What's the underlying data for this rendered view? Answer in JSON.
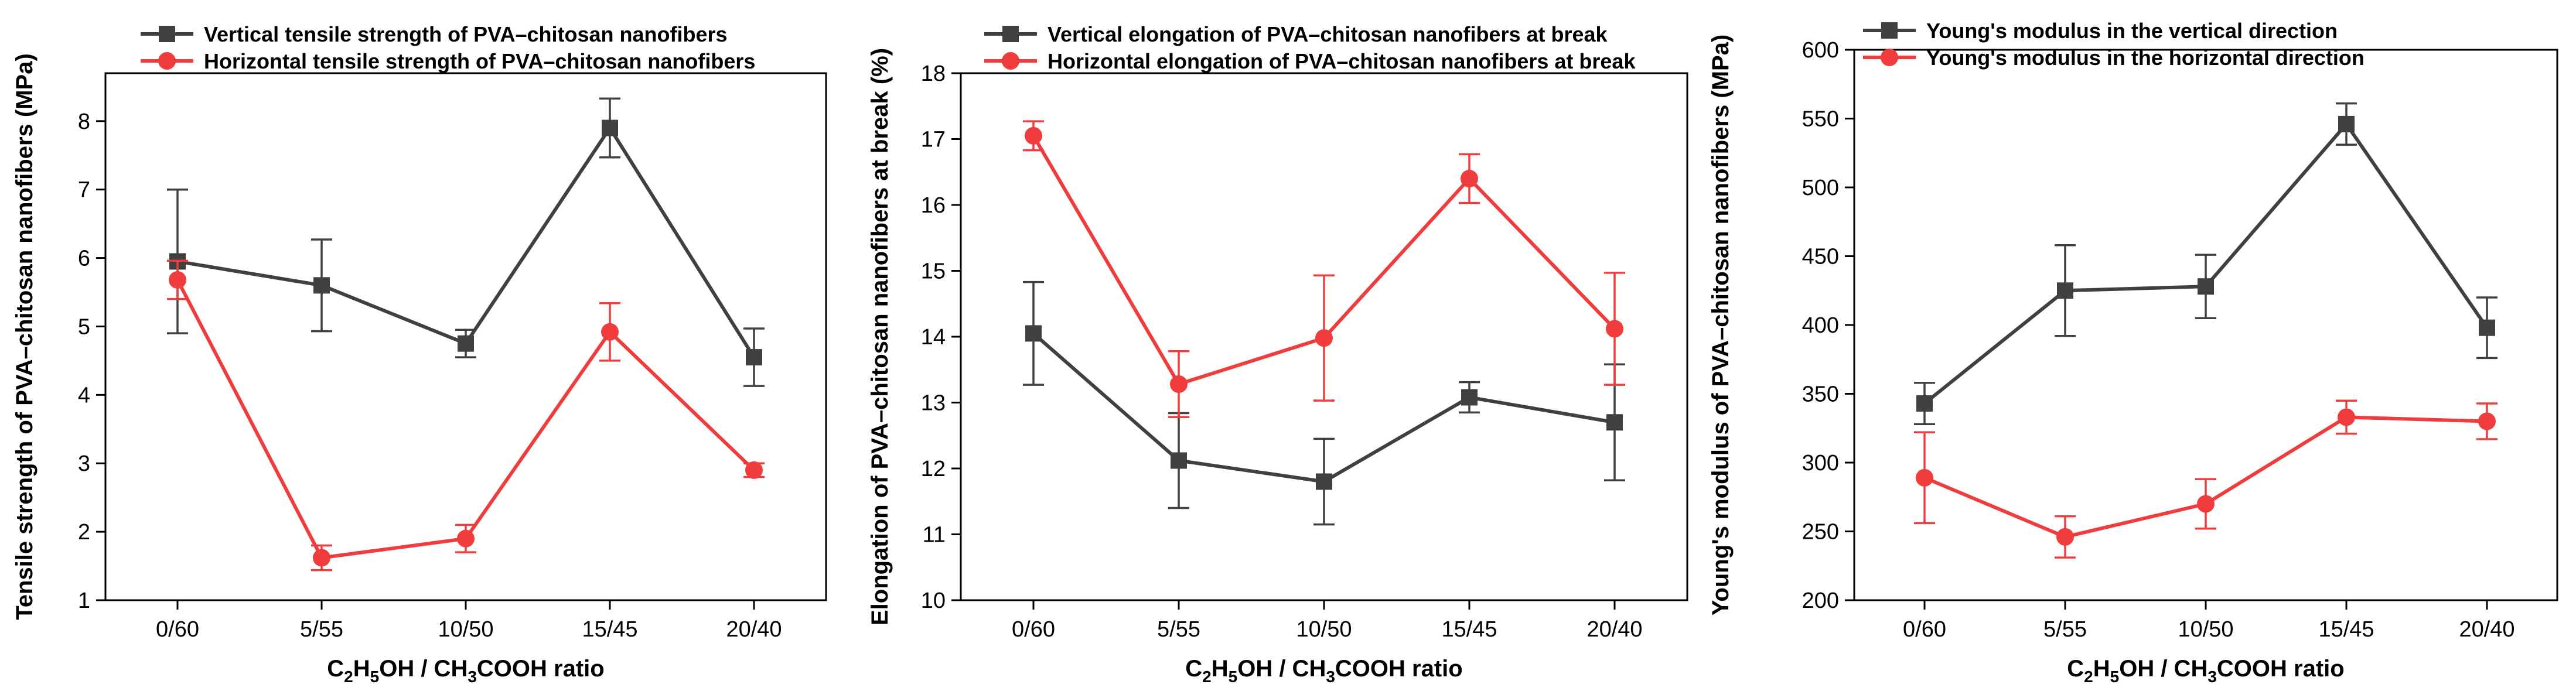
{
  "chart_data": [
    {
      "type": "line",
      "categories": [
        "0/60",
        "5/55",
        "10/50",
        "15/45",
        "20/40"
      ],
      "xlabel_parts": [
        "C",
        "2",
        "H",
        "5",
        "OH / CH",
        "3",
        "COOH ratio"
      ],
      "ylabel": "Tensile strength of  PVA–chitosan nanofibers (MPa)",
      "ylim": [
        1,
        8.7
      ],
      "yticks": [
        1,
        2,
        3,
        4,
        5,
        6,
        7,
        8
      ],
      "legend_position": "top-left",
      "series": [
        {
          "name": "Vertical tensile strength of  PVA–chitosan nanofibers",
          "color": "#404040",
          "marker": "square",
          "values": [
            5.95,
            5.6,
            4.75,
            7.9,
            4.55
          ],
          "errors": [
            1.05,
            0.67,
            0.2,
            0.43,
            0.42
          ]
        },
        {
          "name": "Horizontal tensile strength of  PVA–chitosan nanofibers",
          "color": "#f03c3c",
          "marker": "circle",
          "values": [
            5.68,
            1.62,
            1.9,
            4.92,
            2.9
          ],
          "errors": [
            0.28,
            0.18,
            0.2,
            0.42,
            0.1
          ]
        }
      ]
    },
    {
      "type": "line",
      "categories": [
        "0/60",
        "5/55",
        "10/50",
        "15/45",
        "20/40"
      ],
      "xlabel_parts": [
        "C",
        "2",
        "H",
        "5",
        "OH / CH",
        "3",
        "COOH ratio"
      ],
      "ylabel": "Elongation of PVA–chitosan nanofibers at break (%)",
      "ylim": [
        10,
        18
      ],
      "yticks": [
        10,
        11,
        12,
        13,
        14,
        15,
        16,
        17,
        18
      ],
      "legend_position": "top-left",
      "series": [
        {
          "name": "Vertical elongation of PVA–chitosan nanofibers at break",
          "color": "#404040",
          "marker": "square",
          "values": [
            14.05,
            12.12,
            11.8,
            13.08,
            12.7
          ],
          "errors": [
            0.78,
            0.72,
            0.65,
            0.23,
            0.88
          ]
        },
        {
          "name": "Horizontal elongation of PVA–chitosan nanofibers at break",
          "color": "#f03c3c",
          "marker": "circle",
          "values": [
            17.05,
            13.28,
            13.98,
            16.4,
            14.12
          ],
          "errors": [
            0.22,
            0.5,
            0.95,
            0.37,
            0.85
          ]
        }
      ]
    },
    {
      "type": "line",
      "categories": [
        "0/60",
        "5/55",
        "10/50",
        "15/45",
        "20/40"
      ],
      "xlabel_parts": [
        "C",
        "2",
        "H",
        "5",
        "OH / CH",
        "3",
        "COOH ratio"
      ],
      "ylabel": "Young's modulus of PVA–chitosan nanofibers (MPa)",
      "ylim": [
        200,
        600
      ],
      "yticks": [
        200,
        250,
        300,
        350,
        400,
        450,
        500,
        550,
        600
      ],
      "legend_position": "top-left",
      "series": [
        {
          "name": "Young's modulus in the vertical direction",
          "color": "#404040",
          "marker": "square",
          "values": [
            343,
            425,
            428,
            546,
            398
          ],
          "errors": [
            15,
            33,
            23,
            15,
            22
          ]
        },
        {
          "name": "Young's modulus in the horizontal direction",
          "color": "#f03c3c",
          "marker": "circle",
          "values": [
            289,
            246,
            270,
            333,
            330
          ],
          "errors": [
            33,
            15,
            18,
            12,
            13
          ]
        }
      ]
    }
  ]
}
